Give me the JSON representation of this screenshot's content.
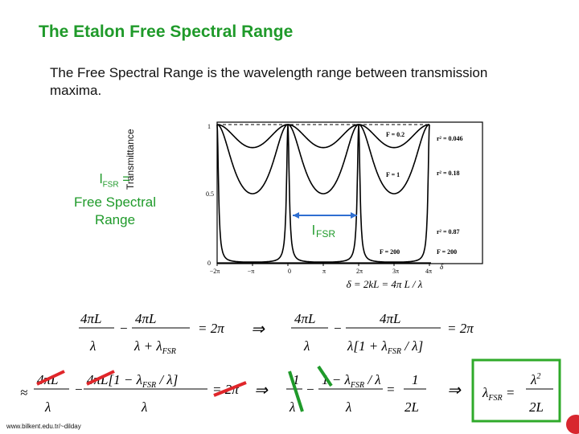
{
  "slide": {
    "title": "The Etalon Free Spectral Range",
    "subtitle": "The Free Spectral Range is the wavelength range between transmission maxima.",
    "footer": "www.bilkent.edu.tr/~dilday"
  },
  "side_label": {
    "symbol": "l",
    "subscript": "FSR",
    "equals": " =",
    "line2": "Free Spectral",
    "line3": "Range"
  },
  "plot": {
    "ylabel": "Transmittance",
    "ytick_labels": [
      "1",
      "0.5",
      "0"
    ],
    "xtick_labels": [
      "−2π",
      "−π",
      "0",
      "π",
      "2π",
      "3π",
      "4π"
    ],
    "delta_symbol": "δ",
    "curve_labels": [
      "F = 0.2",
      "F = 1",
      "F = 200"
    ],
    "r2_labels": [
      "r² = 0.046",
      "r² = 0.18",
      "r² = 0.87",
      "F = 200"
    ],
    "fsr_marker": {
      "symbol": "l",
      "subscript": "FSR"
    },
    "delta_eq": "δ = 2kL = 4π L / λ"
  },
  "colors": {
    "title": "#1f9a2a",
    "marker": "#1f9a2a",
    "fsr_arrow": "#2f6fd1",
    "box": "#2faa2a",
    "strike": "#e0262a"
  }
}
